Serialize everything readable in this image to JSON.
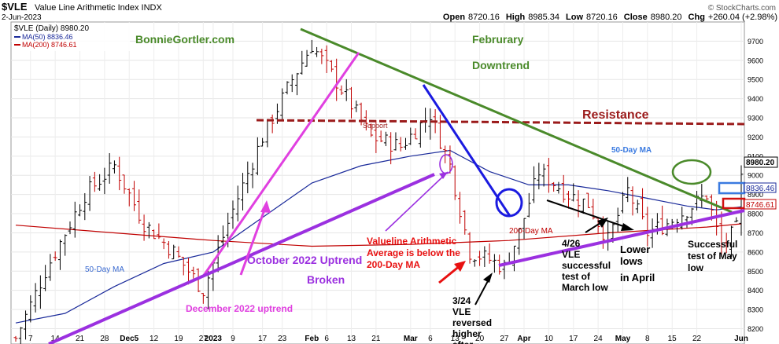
{
  "header": {
    "symbol": "$VLE",
    "name": "Value Line Arithmetic Index  INDX",
    "date": "2-Jun-2023",
    "open_label": "Open",
    "open": "8720.16",
    "high_label": "High",
    "high": "8985.34",
    "low_label": "Low",
    "low": "8720.16",
    "close_label": "Close",
    "close": "8980.20",
    "chg_label": "Chg",
    "chg": "+260.04 (+2.98%)",
    "copyright": "© StockCharts.com"
  },
  "legend": {
    "price": "$VLE (Daily) 8980.20",
    "ma50": "MA(50) 8836.46",
    "ma200": "MA(200) 8746.61"
  },
  "annotations": {
    "site": "BonnieGortler.com",
    "feb1": "Februrary",
    "feb2": "Downtrend",
    "resistance": "Resistance",
    "support": "Support",
    "ma50_right": "50-Day MA",
    "ma50_left": "50-Day MA",
    "ma200": "200-Day MA",
    "val1": "Valueline Arithmetic",
    "val2": "Average is below the",
    "val3": "200-Day MA",
    "oct": "October 2022 Uptrend",
    "broken": "Broken",
    "dec": "December 2022 uptrend",
    "n324_1": "3/24",
    "n324_2": "VLE",
    "n324_3": "reversed",
    "n324_4": "higher",
    "n324_5": "after",
    "n426_1": "4/26",
    "n426_2": "VLE",
    "n426_3": "successful",
    "n426_4": "test of",
    "n426_5": "March low",
    "lower1": "Lower",
    "lower2": "lows",
    "lower3": "in April",
    "succ1": "Successful",
    "succ2": "test of May",
    "succ3": "low"
  },
  "price_labels": {
    "close": "8980.20",
    "ma50": "8836.46",
    "ma200": "8746.61"
  },
  "colors": {
    "up": "#000000",
    "down": "#c00000",
    "ma50": "#1a2a9a",
    "ma200": "#c00000",
    "green": "#4a8a2a",
    "purple": "#9b30e0",
    "magenta": "#e040e0",
    "blue": "#1a1ae0",
    "resistance": "#9b1b1b"
  },
  "chart_data": {
    "type": "candlestick",
    "ylim": [
      8120,
      9800
    ],
    "y_ticks": [
      8200,
      8300,
      8400,
      8500,
      8600,
      8700,
      8800,
      8900,
      9000,
      9100,
      9200,
      9300,
      9400,
      9500,
      9600,
      9700
    ],
    "x_ticks": [
      "7",
      "14",
      "21",
      "28",
      "Dec5",
      "12",
      "19",
      "27",
      "2023",
      "9",
      "17",
      "23",
      "Feb",
      "6",
      "13",
      "21",
      "Mar",
      "6",
      "13",
      "20",
      "27",
      "Apr",
      "10",
      "17",
      "24",
      "May",
      "8",
      "15",
      "22",
      "Jun"
    ],
    "series": [
      {
        "name": "MA(50)",
        "last": 8836.46
      },
      {
        "name": "MA(200)",
        "last": 8746.61
      }
    ],
    "ohlc_key_points": [
      {
        "date": "2022-11-03",
        "close": 8150
      },
      {
        "date": "2022-12-01",
        "close": 9050
      },
      {
        "date": "2022-12-28",
        "close": 8400
      },
      {
        "date": "2023-02-02",
        "close": 9680
      },
      {
        "date": "2023-03-08",
        "close": 9320
      },
      {
        "date": "2023-03-24",
        "close": 8520
      },
      {
        "date": "2023-04-18",
        "close": 9020
      },
      {
        "date": "2023-05-04",
        "close": 8660
      },
      {
        "date": "2023-05-31",
        "close": 8720
      },
      {
        "date": "2023-06-02",
        "close": 8980.2
      }
    ],
    "trendlines": [
      "October 2022 Uptrend",
      "December 2022 uptrend",
      "February Downtrend",
      "Resistance"
    ]
  }
}
